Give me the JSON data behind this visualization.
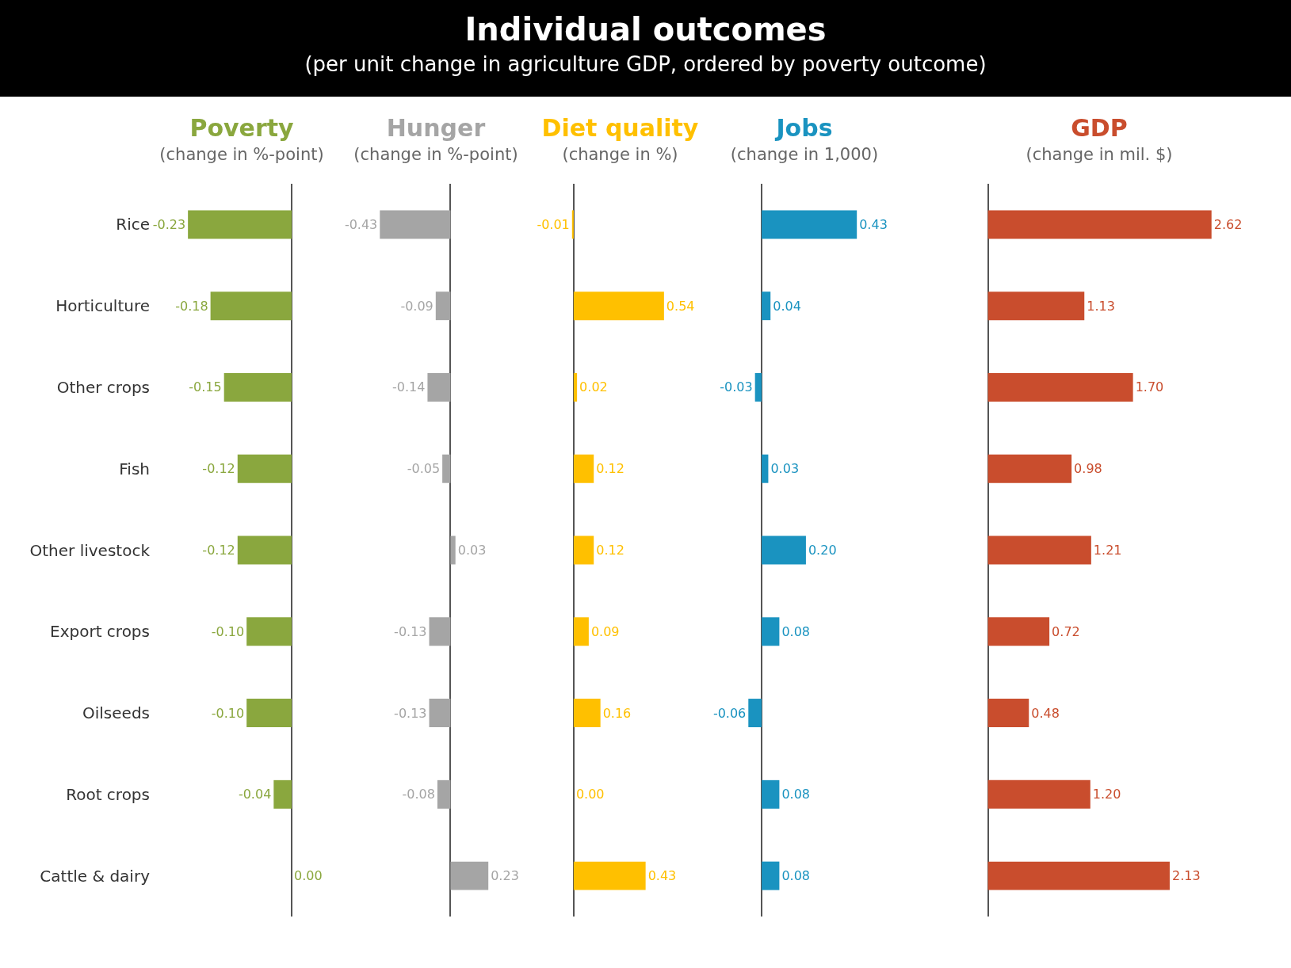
{
  "chart_data": [
    {
      "type": "other",
      "title": "Individual outcomes",
      "subtitle": "(per unit change in agriculture GDP, ordered by poverty outcome)"
    },
    {
      "type": "bar",
      "orientation": "horizontal",
      "title": "Poverty",
      "subtitle": "(change in %-point)",
      "tick_labels": "y",
      "categories": [
        "Rice",
        "Horticulture",
        "Other crops",
        "Fish",
        "Other livestock",
        "Export crops",
        "Oilseeds",
        "Root crops",
        "Cattle & dairy"
      ],
      "series": [
        {
          "color": "#8aa73e",
          "values": [
            -0.23,
            -0.18,
            -0.15,
            -0.12,
            -0.12,
            -0.1,
            -0.1,
            -0.04,
            0.0
          ],
          "value_labels": [
            "-0.23",
            "-0.18",
            "-0.15",
            "-0.12",
            "-0.12",
            "-0.10",
            "-0.10",
            "-0.04",
            "0.00"
          ]
        }
      ]
    },
    {
      "type": "bar",
      "orientation": "horizontal",
      "title": "Hunger",
      "subtitle": "(change in %-point)",
      "tick_labels": false,
      "categories": [
        null,
        null,
        null,
        null,
        null,
        null,
        null,
        null,
        null
      ],
      "series": [
        {
          "color": "#a5a5a5",
          "values": [
            -0.43,
            -0.09,
            -0.14,
            -0.05,
            0.03,
            -0.13,
            -0.13,
            -0.08,
            0.23
          ],
          "value_labels": [
            "-0.43",
            "-0.09",
            "-0.14",
            "-0.05",
            "0.03",
            "-0.13",
            "-0.13",
            "-0.08",
            "0.23"
          ]
        }
      ]
    },
    {
      "type": "bar",
      "orientation": "horizontal",
      "title": "Diet quality",
      "subtitle": "(change in %)",
      "tick_labels": false,
      "categories": [
        null,
        null,
        null,
        null,
        null,
        null,
        null,
        null,
        null
      ],
      "series": [
        {
          "color": "#ffc000",
          "values": [
            -0.01,
            0.54,
            0.02,
            0.12,
            0.12,
            0.09,
            0.16,
            0.0,
            0.43
          ],
          "value_labels": [
            "-0.01",
            "0.54",
            "0.02",
            "0.12",
            "0.12",
            "0.09",
            "0.16",
            "0.00",
            "0.43"
          ]
        }
      ]
    },
    {
      "type": "bar",
      "orientation": "horizontal",
      "title": "Jobs",
      "subtitle": "(change in 1,000)",
      "tick_labels": false,
      "categories": [
        null,
        null,
        null,
        null,
        null,
        null,
        null,
        null,
        null
      ],
      "series": [
        {
          "color": "#1a93c0",
          "values": [
            0.43,
            0.04,
            -0.03,
            0.03,
            0.2,
            0.08,
            -0.06,
            0.08,
            0.08
          ],
          "value_labels": [
            "0.43",
            "0.04",
            "-0.03",
            "0.03",
            "0.20",
            "0.08",
            "-0.06",
            "0.08",
            "0.08"
          ]
        }
      ]
    },
    {
      "type": "bar",
      "orientation": "horizontal",
      "title": "GDP",
      "subtitle": "(change in mil. $)",
      "tick_labels": false,
      "categories": [
        null,
        null,
        null,
        null,
        null,
        null,
        null,
        null,
        null
      ],
      "series": [
        {
          "color": "#c94d2d",
          "values": [
            2.62,
            1.13,
            1.7,
            0.98,
            1.21,
            0.72,
            0.48,
            1.2,
            2.13
          ],
          "value_labels": [
            "2.62",
            "1.13",
            "1.70",
            "0.98",
            "1.21",
            "0.72",
            "0.48",
            "1.20",
            "2.13"
          ]
        }
      ]
    }
  ]
}
